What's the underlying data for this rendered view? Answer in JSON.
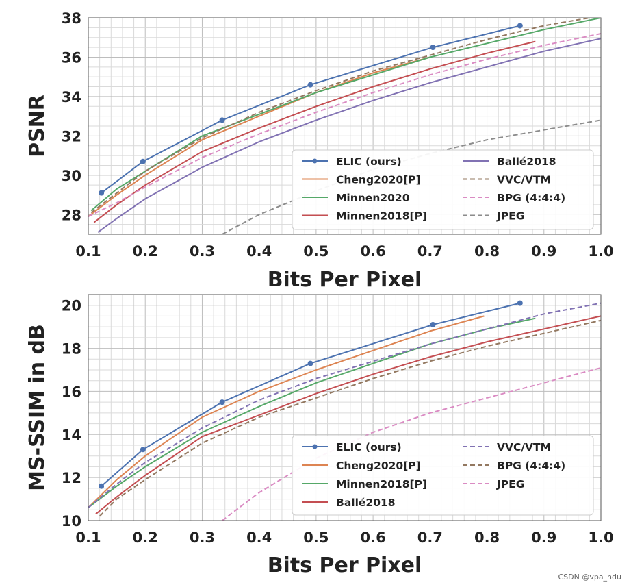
{
  "watermark": "CSDN @vpa_hdu",
  "chart_data": [
    {
      "type": "line",
      "xlabel": "Bits Per Pixel",
      "ylabel": "PSNR",
      "xlim": [
        0.1,
        1.0
      ],
      "ylim": [
        27,
        38
      ],
      "xticks": [
        "0.1",
        "0.2",
        "0.3",
        "0.4",
        "0.5",
        "0.6",
        "0.7",
        "0.8",
        "0.9",
        "1.0"
      ],
      "yticks": [
        "28",
        "30",
        "32",
        "34",
        "36",
        "38"
      ],
      "grid": true,
      "legend": {
        "position": "lower-right",
        "columns": 2
      },
      "series": [
        {
          "name": "ELIC (ours)",
          "color": "#4c72b0",
          "dash": "solid",
          "markers": true,
          "x": [
            0.123,
            0.196,
            0.335,
            0.49,
            0.705,
            0.858
          ],
          "y": [
            29.1,
            30.7,
            32.8,
            34.6,
            36.5,
            37.6
          ]
        },
        {
          "name": "Cheng2020[P]",
          "color": "#dd8452",
          "dash": "solid",
          "markers": false,
          "x": [
            0.1,
            0.15,
            0.2,
            0.3,
            0.4,
            0.5,
            0.6,
            0.7
          ],
          "y": [
            27.9,
            29.0,
            30.0,
            31.8,
            33.0,
            34.2,
            35.2,
            36.0
          ]
        },
        {
          "name": "Minnen2020",
          "color": "#55a868",
          "dash": "solid",
          "markers": false,
          "x": [
            0.105,
            0.15,
            0.2,
            0.3,
            0.4,
            0.5,
            0.6,
            0.7,
            0.8,
            0.9,
            1.0
          ],
          "y": [
            28.2,
            29.3,
            30.2,
            32.0,
            33.1,
            34.2,
            35.1,
            36.0,
            36.7,
            37.4,
            38.0
          ]
        },
        {
          "name": "Minnen2018[P]",
          "color": "#c44e52",
          "dash": "solid",
          "markers": false,
          "x": [
            0.11,
            0.15,
            0.2,
            0.3,
            0.4,
            0.5,
            0.6,
            0.7,
            0.8,
            0.885
          ],
          "y": [
            27.6,
            28.5,
            29.5,
            31.2,
            32.4,
            33.5,
            34.5,
            35.4,
            36.2,
            36.8
          ]
        },
        {
          "name": "Ballé2018",
          "color": "#8172b3",
          "dash": "solid",
          "markers": false,
          "x": [
            0.117,
            0.15,
            0.2,
            0.3,
            0.4,
            0.5,
            0.6,
            0.7,
            0.8,
            0.9,
            1.0
          ],
          "y": [
            27.1,
            27.8,
            28.8,
            30.4,
            31.7,
            32.8,
            33.8,
            34.7,
            35.5,
            36.3,
            36.95
          ]
        },
        {
          "name": "VVC/VTM",
          "color": "#937860",
          "dash": "dashed",
          "markers": false,
          "x": [
            0.105,
            0.15,
            0.2,
            0.3,
            0.4,
            0.5,
            0.6,
            0.7,
            0.8,
            0.9,
            1.0
          ],
          "y": [
            28.1,
            29.1,
            30.2,
            31.9,
            33.2,
            34.3,
            35.3,
            36.1,
            36.9,
            37.6,
            38.1
          ]
        },
        {
          "name": "BPG (4:4:4)",
          "color": "#da8bc3",
          "dash": "dashed",
          "markers": false,
          "x": [
            0.1,
            0.15,
            0.2,
            0.3,
            0.4,
            0.5,
            0.6,
            0.7,
            0.8,
            0.9,
            1.0
          ],
          "y": [
            27.9,
            28.6,
            29.4,
            30.9,
            32.1,
            33.2,
            34.2,
            35.1,
            35.9,
            36.6,
            37.2
          ]
        },
        {
          "name": "JPEG",
          "color": "#8c8c8c",
          "dash": "dashed",
          "markers": false,
          "x": [
            0.335,
            0.4,
            0.5,
            0.6,
            0.7,
            0.8,
            0.9,
            1.0
          ],
          "y": [
            27.0,
            28.0,
            29.2,
            30.3,
            31.1,
            31.8,
            32.3,
            32.8
          ]
        }
      ]
    },
    {
      "type": "line",
      "xlabel": "Bits Per Pixel",
      "ylabel": "MS-SSIM in dB",
      "xlim": [
        0.1,
        1.0
      ],
      "ylim": [
        10,
        20.5
      ],
      "xticks": [
        "0.1",
        "0.2",
        "0.3",
        "0.4",
        "0.5",
        "0.6",
        "0.7",
        "0.8",
        "0.9",
        "1.0"
      ],
      "yticks": [
        "10",
        "12",
        "14",
        "16",
        "18",
        "20"
      ],
      "grid": true,
      "legend": {
        "position": "lower-right",
        "columns": 2
      },
      "series": [
        {
          "name": "ELIC (ours)",
          "color": "#4c72b0",
          "dash": "solid",
          "markers": true,
          "x": [
            0.123,
            0.196,
            0.335,
            0.49,
            0.705,
            0.858
          ],
          "y": [
            11.6,
            13.3,
            15.5,
            17.3,
            19.1,
            20.1
          ]
        },
        {
          "name": "Cheng2020[P]",
          "color": "#dd8452",
          "dash": "solid",
          "markers": false,
          "x": [
            0.1,
            0.15,
            0.2,
            0.3,
            0.4,
            0.5,
            0.6,
            0.7,
            0.795
          ],
          "y": [
            10.6,
            11.9,
            13.0,
            14.8,
            16.0,
            17.0,
            17.9,
            18.8,
            19.5
          ]
        },
        {
          "name": "Minnen2018[P]",
          "color": "#55a868",
          "dash": "solid",
          "markers": false,
          "x": [
            0.1,
            0.15,
            0.2,
            0.3,
            0.4,
            0.5,
            0.6,
            0.7,
            0.8,
            0.885
          ],
          "y": [
            10.6,
            11.6,
            12.5,
            14.1,
            15.3,
            16.4,
            17.3,
            18.2,
            18.9,
            19.4
          ]
        },
        {
          "name": "Ballé2018",
          "color": "#c44e52",
          "dash": "solid",
          "markers": false,
          "x": [
            0.113,
            0.15,
            0.2,
            0.3,
            0.4,
            0.5,
            0.6,
            0.7,
            0.8,
            0.9,
            1.0
          ],
          "y": [
            10.3,
            11.1,
            12.1,
            13.9,
            14.9,
            15.9,
            16.8,
            17.6,
            18.3,
            18.9,
            19.5
          ]
        },
        {
          "name": "VVC/VTM",
          "color": "#8172b3",
          "dash": "dashed",
          "markers": false,
          "x": [
            0.1,
            0.15,
            0.2,
            0.3,
            0.4,
            0.5,
            0.6,
            0.7,
            0.8,
            0.9,
            1.0
          ],
          "y": [
            10.6,
            11.7,
            12.7,
            14.3,
            15.6,
            16.6,
            17.4,
            18.2,
            18.9,
            19.6,
            20.1
          ]
        },
        {
          "name": "BPG (4:4:4)",
          "color": "#937860",
          "dash": "dashed",
          "markers": false,
          "x": [
            0.12,
            0.15,
            0.2,
            0.3,
            0.4,
            0.5,
            0.6,
            0.7,
            0.8,
            0.9,
            1.0
          ],
          "y": [
            10.2,
            11.0,
            11.9,
            13.6,
            14.8,
            15.7,
            16.6,
            17.4,
            18.1,
            18.7,
            19.3
          ]
        },
        {
          "name": "JPEG",
          "color": "#da8bc3",
          "dash": "dashed",
          "markers": false,
          "x": [
            0.335,
            0.4,
            0.5,
            0.6,
            0.7,
            0.8,
            0.9,
            1.0
          ],
          "y": [
            10.0,
            11.3,
            12.9,
            14.1,
            15.0,
            15.7,
            16.4,
            17.1
          ]
        }
      ]
    }
  ]
}
